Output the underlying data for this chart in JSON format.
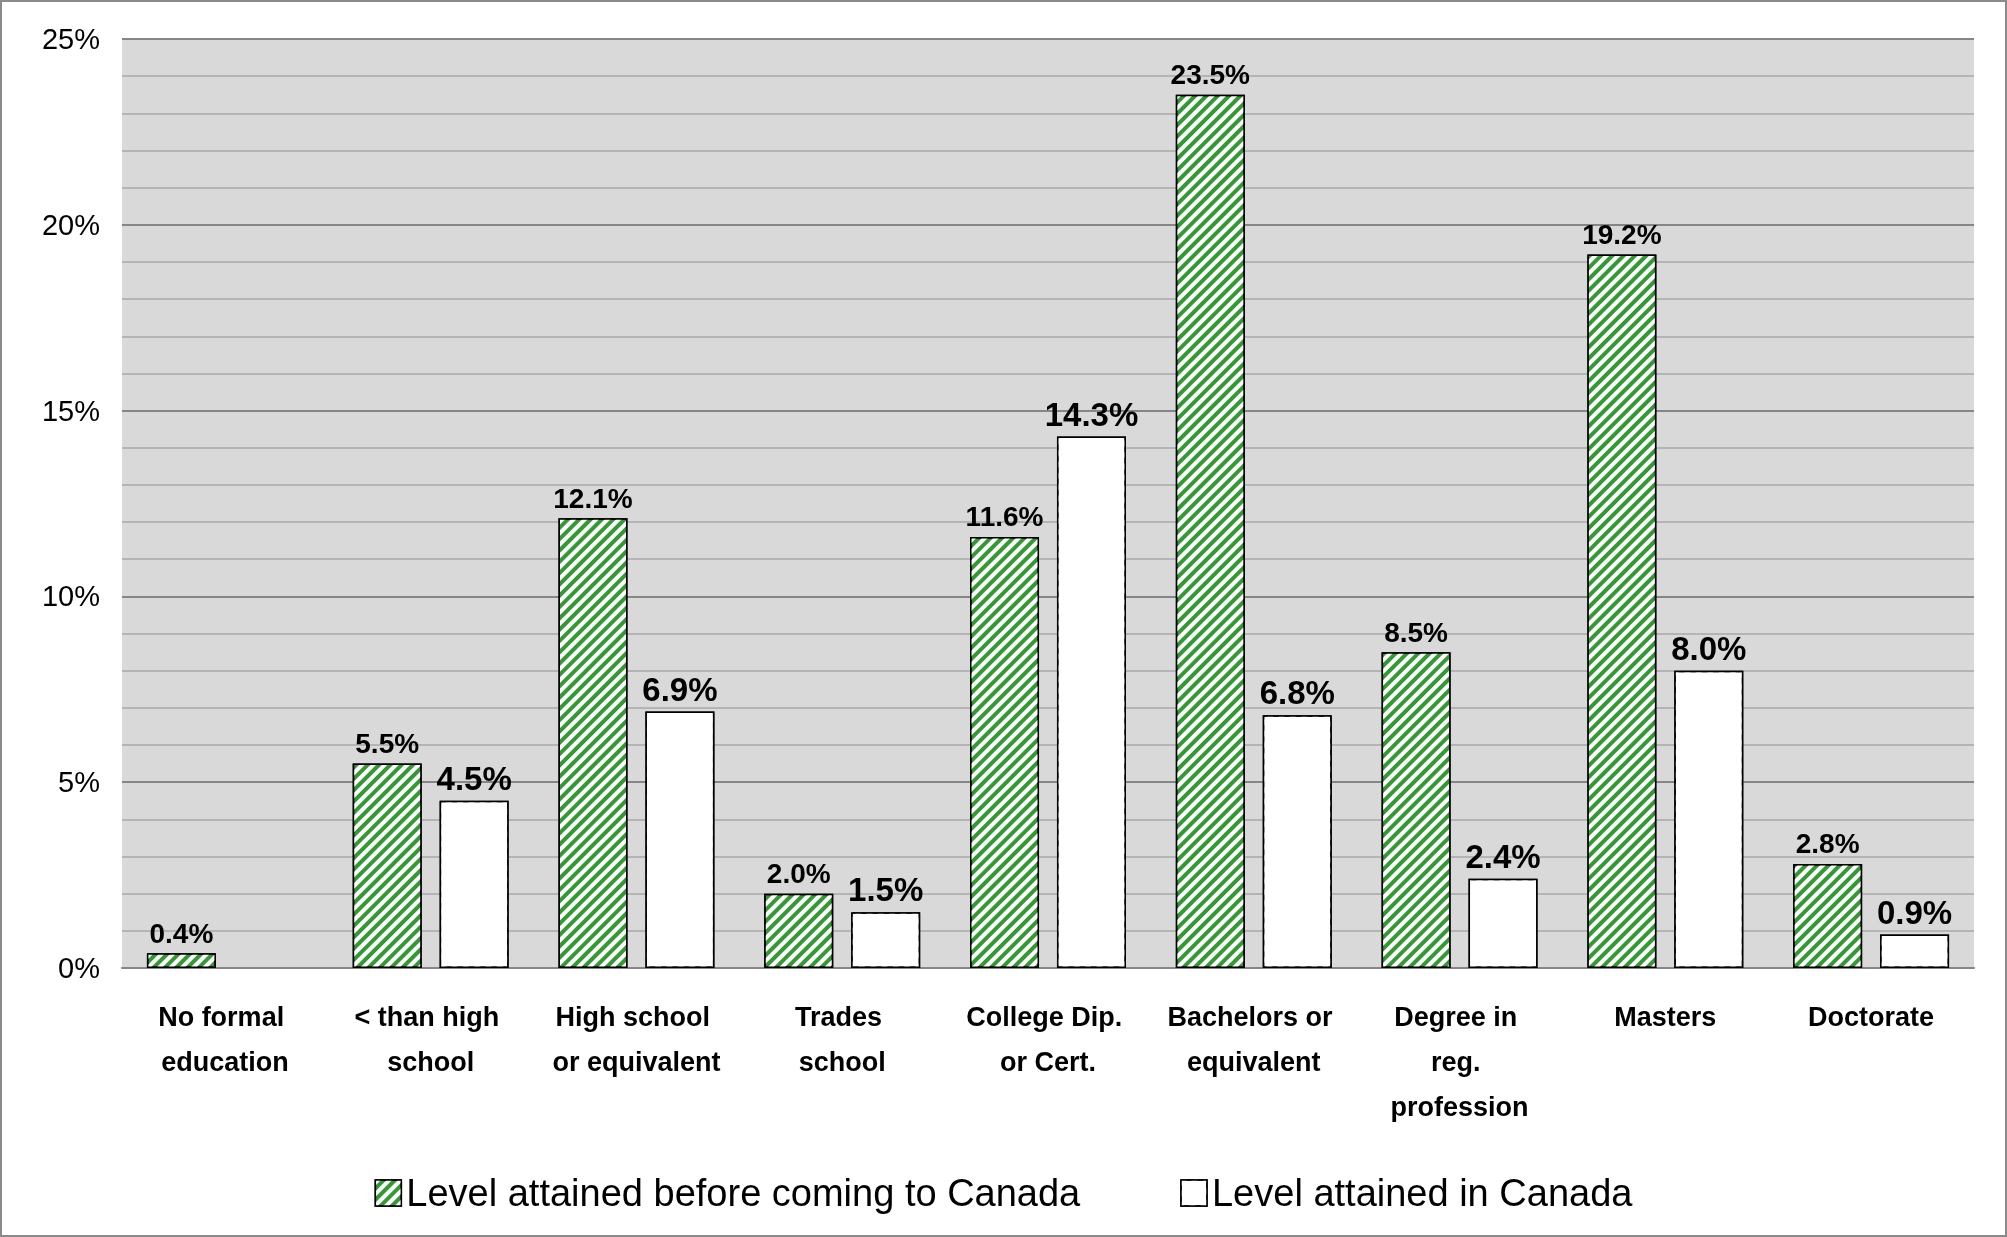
{
  "chart_data": {
    "type": "bar",
    "categories": [
      "No formal education",
      "< than high school",
      "High school or equivalent",
      "Trades school",
      "College Dip. or Cert.",
      "Bachelors or equivalent",
      "Degree in reg. profession",
      "Masters",
      "Doctorate"
    ],
    "series": [
      {
        "name": "Level attained before coming to Canada",
        "color": "#339933",
        "values": [
          0.4,
          5.5,
          12.1,
          2.0,
          11.6,
          23.5,
          8.5,
          19.2,
          2.8
        ],
        "value_labels": [
          "0.4%",
          "5.5%",
          "12.1%",
          "2.0%",
          "11.6%",
          "23.5%",
          "8.5%",
          "19.2%",
          "2.8%"
        ]
      },
      {
        "name": "Level attained in Canada",
        "color": "#ffffff",
        "values": [
          null,
          4.5,
          6.9,
          1.5,
          14.3,
          6.8,
          2.4,
          8.0,
          0.9
        ],
        "value_labels": [
          null,
          "4.5%",
          "6.9%",
          "1.5%",
          "14.3%",
          "6.8%",
          "2.4%",
          "8.0%",
          "0.9%"
        ]
      }
    ],
    "ylim": [
      0,
      25
    ],
    "yticks": [
      {
        "value": 0,
        "label": "0%"
      },
      {
        "value": 1,
        "label": null
      },
      {
        "value": 2,
        "label": null
      },
      {
        "value": 3,
        "label": null
      },
      {
        "value": 4,
        "label": null
      },
      {
        "value": 5,
        "label": "5%"
      },
      {
        "value": 6,
        "label": null
      },
      {
        "value": 7,
        "label": null
      },
      {
        "value": 8,
        "label": null
      },
      {
        "value": 9,
        "label": null
      },
      {
        "value": 10,
        "label": "10%"
      },
      {
        "value": 11,
        "label": null
      },
      {
        "value": 12,
        "label": null
      },
      {
        "value": 13,
        "label": null
      },
      {
        "value": 14,
        "label": null
      },
      {
        "value": 15,
        "label": "15%"
      },
      {
        "value": 16,
        "label": null
      },
      {
        "value": 17,
        "label": null
      },
      {
        "value": 18,
        "label": null
      },
      {
        "value": 19,
        "label": null
      },
      {
        "value": 20,
        "label": "20%"
      },
      {
        "value": 21,
        "label": null
      },
      {
        "value": 22,
        "label": null
      },
      {
        "value": 23,
        "label": null
      },
      {
        "value": 24,
        "label": null
      },
      {
        "value": 25,
        "label": "25%"
      }
    ],
    "grid": "y",
    "legend": "bottom"
  }
}
